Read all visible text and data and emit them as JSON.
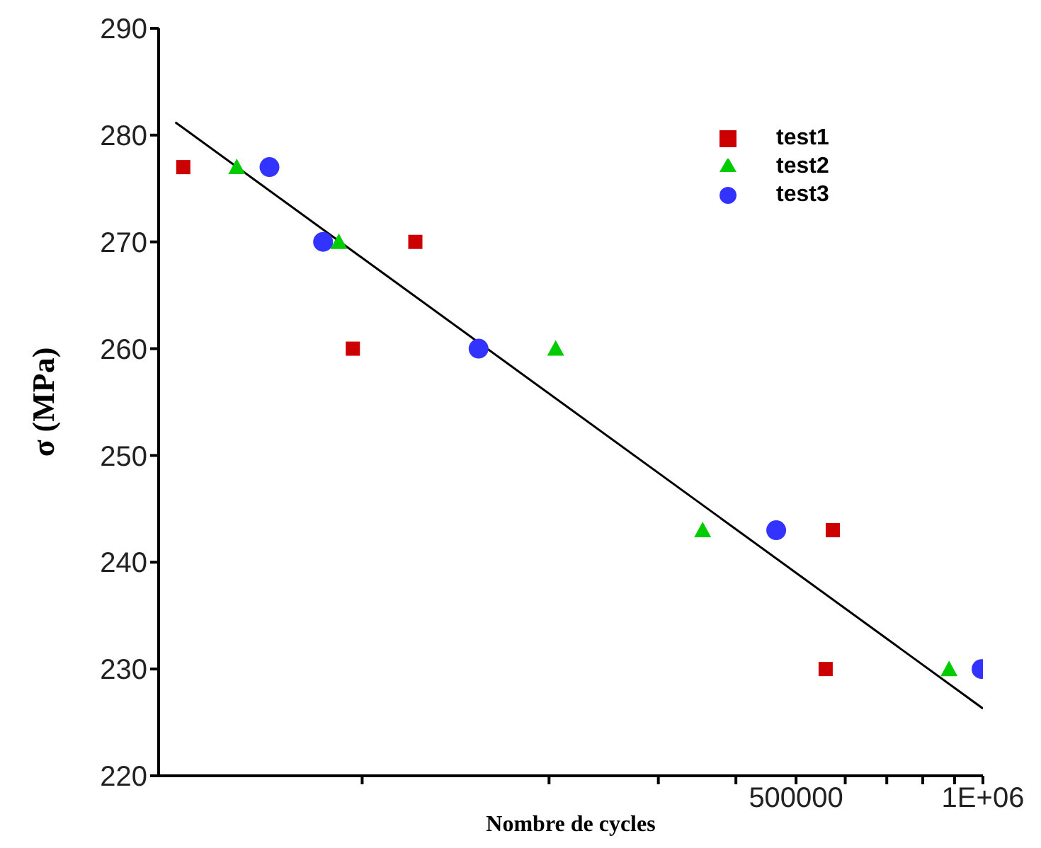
{
  "chart_data": {
    "type": "scatter",
    "xlabel": "Nombre  de cycles",
    "ylabel": "σ (MPa)",
    "log": "x",
    "xlim": [
      47000,
      1000000
    ],
    "xticks": [
      {
        "value": 100000,
        "label": null
      },
      {
        "value": 200000,
        "label": null
      },
      {
        "value": 300000,
        "label": null
      },
      {
        "value": 400000,
        "label": null
      },
      500000,
      {
        "value": 600000,
        "label": null
      },
      {
        "value": 700000,
        "label": null
      },
      {
        "value": 800000,
        "label": null
      },
      {
        "value": 900000,
        "label": null
      },
      {
        "value": 1000000,
        "label": "1E+06"
      }
    ],
    "ylim": [
      220,
      290
    ],
    "yticks": [
      220,
      230,
      240,
      250,
      260,
      270,
      280,
      290
    ],
    "grid": false,
    "legend": "top right",
    "series": [
      {
        "name": "test1",
        "color": "#cc0000",
        "marker": "square",
        "x": [
          51500,
          96600,
          121800,
          573000,
          558000
        ],
        "values": [
          277,
          260,
          270,
          243,
          230
        ]
      },
      {
        "name": "test2",
        "color": "#00cc00",
        "marker": "triangle",
        "x": [
          62800,
          91700,
          205000,
          353600,
          882000
        ],
        "values": [
          277,
          270,
          260,
          243,
          230
        ]
      },
      {
        "name": "test3",
        "color": "#3333ff",
        "marker": "circle",
        "x": [
          70900,
          86500,
          154000,
          464500,
          995000
        ],
        "values": [
          277,
          270,
          260,
          243,
          230
        ]
      },
      {
        "type": "line",
        "color": "#000000",
        "marker": "none",
        "x": [
          50000,
          1000000
        ],
        "values": [
          281.2,
          226.3
        ]
      }
    ]
  }
}
